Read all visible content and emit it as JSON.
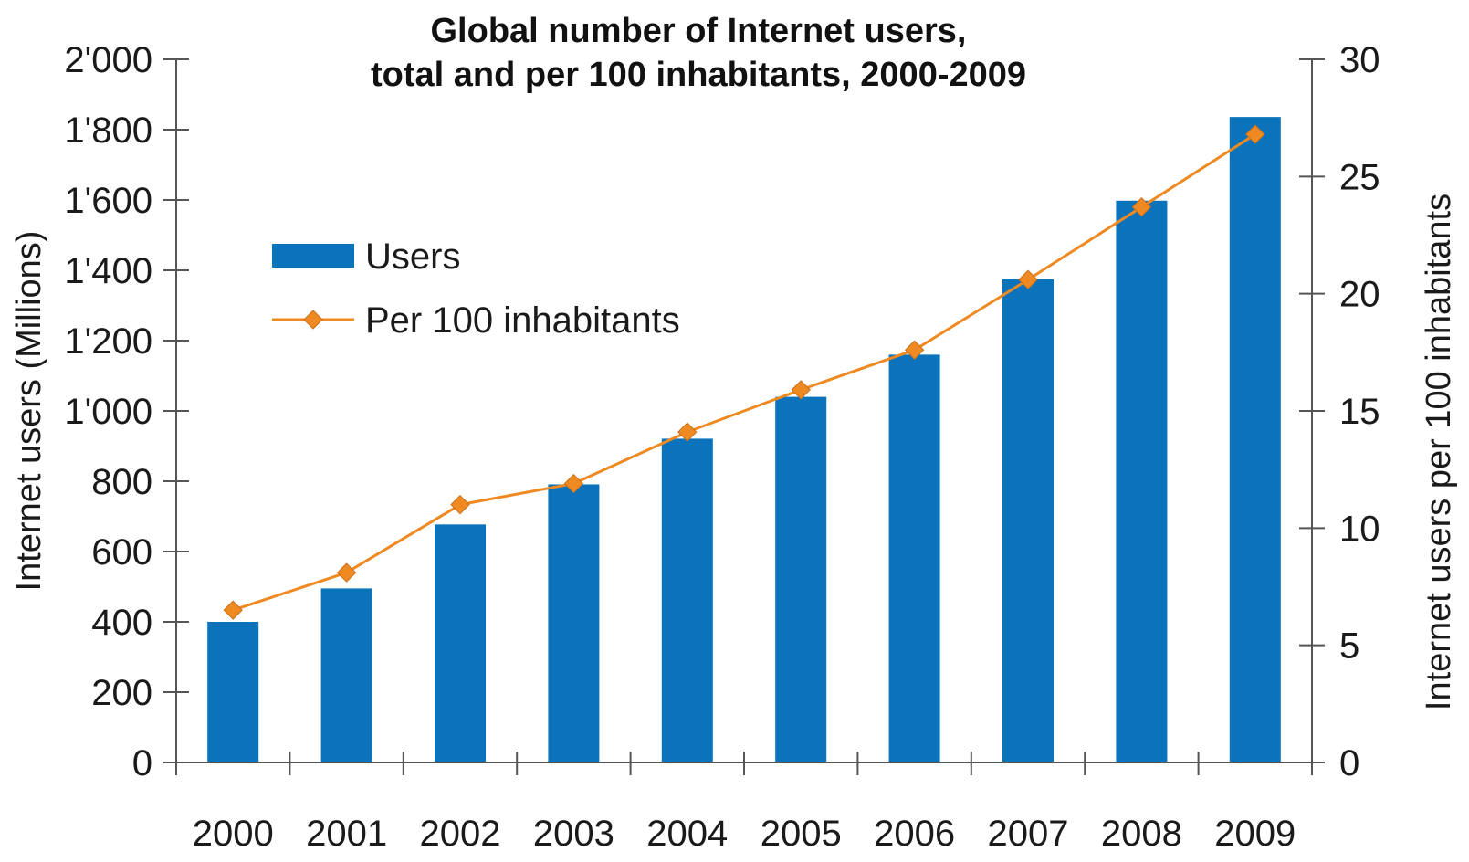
{
  "chart_data": {
    "type": "bar",
    "title_lines": [
      "Global number of Internet users,",
      "total and per 100 inhabitants, 2000-2009"
    ],
    "categories": [
      "2000",
      "2001",
      "2002",
      "2003",
      "2004",
      "2005",
      "2006",
      "2007",
      "2008",
      "2009"
    ],
    "series": [
      {
        "name": "Users",
        "type": "bar",
        "axis": "left",
        "color": "#0a73bb",
        "values": [
          400,
          495,
          677,
          791,
          921,
          1040,
          1160,
          1374,
          1598,
          1836
        ]
      },
      {
        "name": "Per 100 inhabitants",
        "type": "line",
        "axis": "right",
        "color": "#ef8a22",
        "marker": "diamond",
        "values": [
          6.5,
          8.1,
          11.0,
          11.9,
          14.1,
          15.9,
          17.6,
          20.6,
          23.7,
          26.8
        ]
      }
    ],
    "ylabel_left": "Internet users (Millions)",
    "ylabel_right": "Internet users per 100 inhabitants",
    "ylim_left": [
      0,
      2000
    ],
    "ylim_right": [
      0,
      30
    ],
    "yticks_left": [
      0,
      200,
      400,
      600,
      800,
      1000,
      1200,
      1400,
      1600,
      1800,
      2000
    ],
    "yticks_left_labels": [
      "0",
      "200",
      "400",
      "600",
      "800",
      "1'000",
      "1'200",
      "1'400",
      "1'600",
      "1'800",
      "2'000"
    ],
    "yticks_right": [
      0,
      5,
      10,
      15,
      20,
      25,
      30
    ],
    "yticks_right_labels": [
      "0",
      "5",
      "10",
      "15",
      "20",
      "25",
      "30"
    ],
    "grid": false,
    "legend_placement": "upper-left"
  }
}
